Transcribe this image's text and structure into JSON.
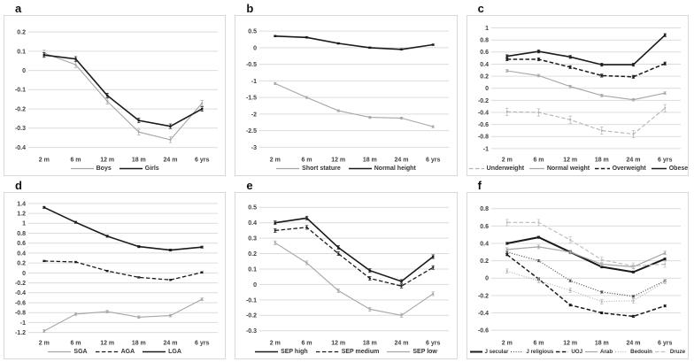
{
  "figure": {
    "background": "#ffffff",
    "grid_color": "#dcdcdc",
    "panel_border_color": "#d9d9d9"
  },
  "chart_data": [
    {
      "panel_label": "a",
      "type": "line",
      "categories": [
        "2 m",
        "6 m",
        "12 m",
        "18 m",
        "24 m",
        "6 yrs"
      ],
      "xlabel": "",
      "ylabel": "",
      "grid": true,
      "legend_position": "bottom",
      "ylim": [
        -0.425,
        0.265
      ],
      "yticks": [
        "0.2",
        "0.1",
        "0",
        "-0.1",
        "-0.2",
        "-0.3",
        "-0.4"
      ],
      "series": [
        {
          "name": "Boys",
          "color": "#a6a6a6",
          "style": "solid",
          "width": 1.1,
          "err": 0.015,
          "values": [
            0.09,
            0.03,
            -0.16,
            -0.32,
            -0.36,
            -0.17
          ]
        },
        {
          "name": "Girls",
          "color": "#1a1a1a",
          "style": "solid",
          "width": 1.6,
          "err": 0.012,
          "values": [
            0.08,
            0.06,
            -0.13,
            -0.26,
            -0.29,
            -0.2
          ]
        }
      ]
    },
    {
      "panel_label": "b",
      "type": "line",
      "categories": [
        "2 m",
        "6 m",
        "12 m",
        "18 m",
        "24 m",
        "6 yrs"
      ],
      "xlabel": "",
      "ylabel": "",
      "grid": true,
      "legend_position": "bottom",
      "ylim": [
        -3.15,
        0.85
      ],
      "yticks": [
        "0.5",
        "0",
        "-0.5",
        "-1",
        "-1.5",
        "-2",
        "-2.5",
        "-3"
      ],
      "series": [
        {
          "name": "Short stature",
          "color": "#a6a6a6",
          "style": "solid",
          "width": 1.1,
          "err": 0.03,
          "values": [
            -1.08,
            -1.5,
            -1.9,
            -2.1,
            -2.12,
            -2.38
          ]
        },
        {
          "name": "Normal height",
          "color": "#1a1a1a",
          "style": "solid",
          "width": 1.6,
          "err": 0.02,
          "values": [
            0.35,
            0.31,
            0.13,
            0.0,
            -0.05,
            0.09
          ]
        }
      ]
    },
    {
      "panel_label": "c",
      "type": "line",
      "categories": [
        "2 m",
        "6 m",
        "12 m",
        "18 m",
        "24 m",
        "6 yrs"
      ],
      "xlabel": "",
      "ylabel": "",
      "grid": true,
      "legend_position": "bottom",
      "ylim": [
        -1.06,
        1.14
      ],
      "yticks": [
        "1",
        "0.8",
        "0.6",
        "0.4",
        "0.2",
        "0",
        "-0.2",
        "-0.4",
        "-0.6",
        "-0.8",
        "-1"
      ],
      "series": [
        {
          "name": "Underweight",
          "color": "#b3b3b3",
          "style": "dashed",
          "width": 1.1,
          "err": 0.06,
          "values": [
            -0.39,
            -0.4,
            -0.52,
            -0.7,
            -0.76,
            -0.33
          ]
        },
        {
          "name": "Normal weight",
          "color": "#a6a6a6",
          "style": "solid",
          "width": 1.1,
          "err": 0.02,
          "values": [
            0.29,
            0.21,
            0.03,
            -0.12,
            -0.19,
            -0.08
          ]
        },
        {
          "name": "Overweight",
          "color": "#1a1a1a",
          "style": "dashed",
          "width": 1.5,
          "err": 0.025,
          "values": [
            0.48,
            0.48,
            0.35,
            0.21,
            0.19,
            0.41
          ]
        },
        {
          "name": "Obese",
          "color": "#1a1a1a",
          "style": "solid",
          "width": 1.6,
          "err": 0.025,
          "values": [
            0.53,
            0.61,
            0.52,
            0.39,
            0.39,
            0.88
          ]
        }
      ]
    },
    {
      "panel_label": "d",
      "type": "line",
      "categories": [
        "2 m",
        "6 m",
        "12 m",
        "18 m",
        "24 m",
        "6 yrs"
      ],
      "xlabel": "",
      "ylabel": "",
      "grid": true,
      "legend_position": "bottom",
      "ylim": [
        -1.26,
        1.54
      ],
      "yticks": [
        "1.4",
        "1.2",
        "1",
        "0.8",
        "0.6",
        "0.4",
        "0.2",
        "0",
        "-0.2",
        "-0.4",
        "-0.6",
        "-0.8",
        "-1",
        "-1.2"
      ],
      "series": [
        {
          "name": "SGA",
          "color": "#a6a6a6",
          "style": "solid",
          "width": 1.1,
          "err": 0.025,
          "values": [
            -1.17,
            -0.83,
            -0.78,
            -0.89,
            -0.86,
            -0.53
          ]
        },
        {
          "name": "AGA",
          "color": "#1a1a1a",
          "style": "dashed",
          "width": 1.3,
          "err": 0.015,
          "values": [
            0.24,
            0.22,
            0.04,
            -0.09,
            -0.14,
            0.01
          ]
        },
        {
          "name": "LGA",
          "color": "#1a1a1a",
          "style": "solid",
          "width": 1.6,
          "err": 0.02,
          "values": [
            1.32,
            1.02,
            0.74,
            0.53,
            0.46,
            0.52
          ]
        }
      ]
    },
    {
      "panel_label": "e",
      "type": "line",
      "categories": [
        "2 m",
        "6 m",
        "12 m",
        "18 m",
        "24 m",
        "6 yrs"
      ],
      "xlabel": "",
      "ylabel": "",
      "grid": true,
      "legend_position": "bottom",
      "ylim": [
        -0.33,
        0.57
      ],
      "yticks": [
        "0.5",
        "0.4",
        "0.3",
        "0.2",
        "0.1",
        "0",
        "-0.1",
        "-0.2",
        "-0.3"
      ],
      "series": [
        {
          "name": "SEP high",
          "color": "#1a1a1a",
          "style": "solid",
          "width": 1.6,
          "err": 0.012,
          "values": [
            0.4,
            0.43,
            0.24,
            0.09,
            0.02,
            0.18
          ]
        },
        {
          "name": "SEP medium",
          "color": "#1a1a1a",
          "style": "dashed",
          "width": 1.3,
          "err": 0.012,
          "values": [
            0.35,
            0.37,
            0.2,
            0.04,
            -0.01,
            0.11
          ]
        },
        {
          "name": "SEP low",
          "color": "#a6a6a6",
          "style": "solid",
          "width": 1.1,
          "err": 0.012,
          "values": [
            0.27,
            0.14,
            -0.04,
            -0.16,
            -0.2,
            -0.06
          ]
        }
      ]
    },
    {
      "panel_label": "f",
      "type": "line",
      "categories": [
        "2 m",
        "6 m",
        "12 m",
        "18 m",
        "24 m",
        "6 yrs"
      ],
      "xlabel": "",
      "ylabel": "",
      "grid": true,
      "legend_position": "bottom",
      "ylim": [
        -0.66,
        0.94
      ],
      "yticks": [
        "0.8",
        "0.6",
        "0.4",
        "0.2",
        "0",
        "-0.2",
        "-0.4",
        "-0.6"
      ],
      "series": [
        {
          "name": "J secular",
          "color": "#1a1a1a",
          "style": "solid",
          "width": 2.0,
          "err": 0.012,
          "values": [
            0.4,
            0.47,
            0.3,
            0.13,
            0.07,
            0.22
          ]
        },
        {
          "name": "J religious",
          "color": "#4d4d4d",
          "style": "dotted",
          "width": 1.2,
          "err": 0.012,
          "values": [
            0.3,
            0.2,
            -0.03,
            -0.16,
            -0.21,
            -0.03
          ]
        },
        {
          "name": "UOJ",
          "color": "#1a1a1a",
          "style": "dashed",
          "width": 1.5,
          "err": 0.012,
          "values": [
            0.27,
            -0.01,
            -0.31,
            -0.4,
            -0.44,
            -0.32
          ]
        },
        {
          "name": "Arab",
          "color": "#a6a6a6",
          "style": "solid",
          "width": 1.2,
          "err": 0.02,
          "values": [
            0.33,
            0.36,
            0.3,
            0.16,
            0.13,
            0.29
          ]
        },
        {
          "name": "Bedouin",
          "color": "#b3b3b3",
          "style": "dotted",
          "width": 1.2,
          "err": 0.025,
          "values": [
            0.08,
            -0.03,
            -0.14,
            -0.27,
            -0.26,
            -0.04
          ]
        },
        {
          "name": "Druze",
          "color": "#bfbfbf",
          "style": "dashed",
          "width": 1.2,
          "err": 0.035,
          "values": [
            0.64,
            0.64,
            0.44,
            0.21,
            0.14,
            0.16
          ]
        }
      ]
    }
  ]
}
